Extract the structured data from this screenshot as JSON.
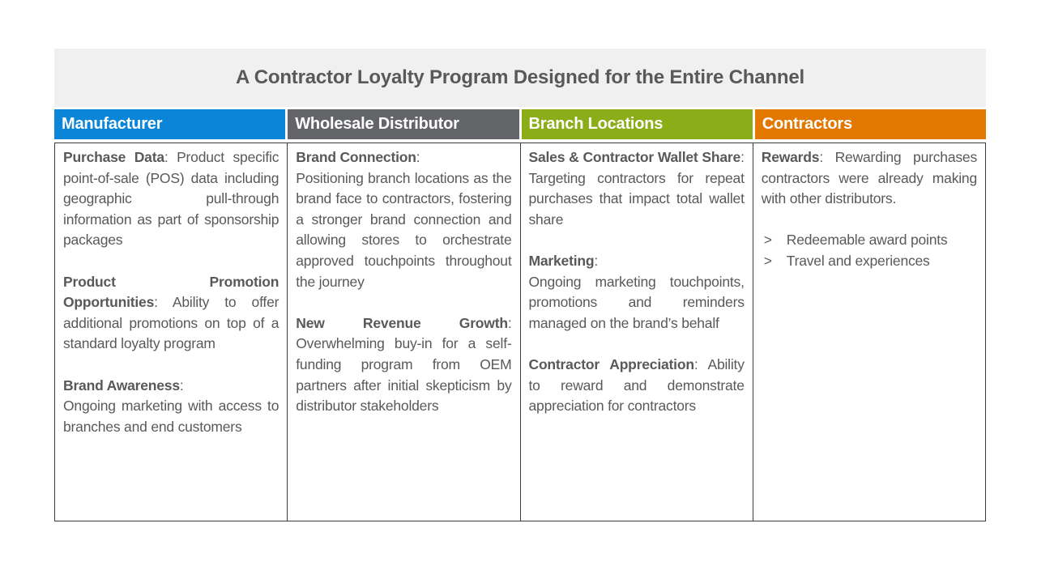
{
  "title": "A Contractor Loyalty Program Designed for the Entire Channel",
  "sep": {
    "inline": ": ",
    "colon": ":"
  },
  "colors": {
    "title_band_bg": "#F0F0F0",
    "title_text": "#595959",
    "body_text": "#595959",
    "border": "#3C3C3C"
  },
  "columns": [
    {
      "header": "Manufacturer",
      "accent": "#0A85D8",
      "blocks": [
        {
          "label": "Purchase Data",
          "text": "Product specific point-of-sale (POS) data including geographic pull-through information as part of sponsorship packages"
        },
        {
          "label": "Product Promotion Opportunities",
          "text": "Ability to offer additional promotions on top of a standard loyalty program"
        },
        {
          "label": "Brand Awareness",
          "text": "Ongoing marketing with access to branches and end customers"
        }
      ]
    },
    {
      "header": "Wholesale Distributor",
      "accent": "#636569",
      "blocks": [
        {
          "label": "Brand Connection",
          "text": "Positioning branch locations as the brand face to contractors, fostering a stronger brand connection and allowing stores to orchestrate approved touchpoints throughout the journey"
        },
        {
          "label": "New Revenue Growth",
          "text": "Overwhelming buy-in for a self-funding program from OEM partners after initial skepticism by distributor stakeholders"
        }
      ]
    },
    {
      "header": "Branch Locations",
      "accent": "#8BAD18",
      "blocks": [
        {
          "label": "Sales & Contractor Wallet Share",
          "text": "Targeting contractors for repeat purchases that impact total wallet share"
        },
        {
          "label": "Marketing",
          "text": "Ongoing marketing touchpoints, promotions and reminders managed on the brand’s behalf"
        },
        {
          "label": "Contractor Appreciation",
          "text": "Ability to reward and demonstrate appreciation for contractors"
        }
      ]
    },
    {
      "header": "Contractors",
      "accent": "#E27800",
      "bullet_marker": ">",
      "blocks": [
        {
          "label": "Rewards",
          "text": "Rewarding purchases contractors were already making with other distributors."
        }
      ],
      "bullets": [
        "Redeemable award points",
        "Travel and experiences"
      ]
    }
  ]
}
